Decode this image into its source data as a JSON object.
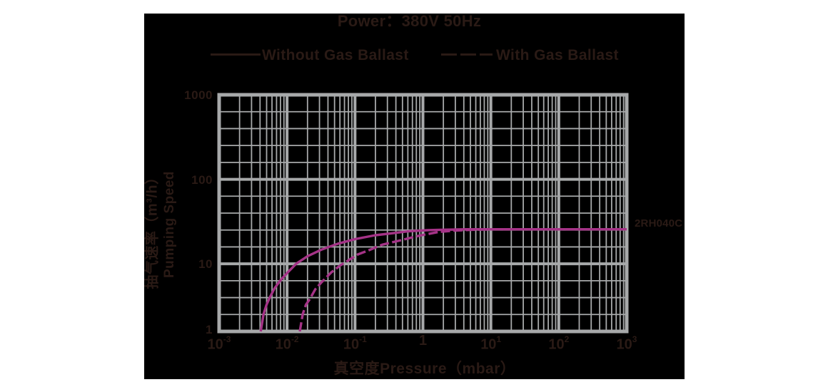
{
  "title": "Power：380V 50Hz",
  "legend": {
    "without": "Without Gas Ballast",
    "with": "With Gas Ballast"
  },
  "series_tag": "2RH040C",
  "colors": {
    "curve": "#a53387",
    "grid": "#a7a9aa",
    "text": "#2a1a15",
    "panel_bg": "#000000",
    "page_bg": "#ffffff"
  },
  "y_axis": {
    "label_cn": "抽气速率（m³/h）",
    "label_en": "Pumping Speed",
    "ticks": [
      "1000",
      "100",
      "10",
      "1"
    ]
  },
  "x_axis": {
    "label": "真空度Pressure（mbar）",
    "ticks": [
      {
        "base": "10",
        "exp": "-3"
      },
      {
        "base": "10",
        "exp": "-2"
      },
      {
        "base": "10",
        "exp": "-1"
      },
      {
        "base": "1",
        "exp": ""
      },
      {
        "base": "10",
        "exp": "1"
      },
      {
        "base": "10",
        "exp": "2"
      },
      {
        "base": "10",
        "exp": "3"
      }
    ]
  },
  "chart_data": {
    "type": "line",
    "title": "Power：380V 50Hz",
    "xlabel": "真空度Pressure（mbar）",
    "ylabel": "抽气速率（m³/h）Pumping Speed",
    "x_scale": "log",
    "y_scale": "log",
    "xlim": [
      0.001,
      1000
    ],
    "ylim": [
      1,
      1000
    ],
    "series": [
      {
        "name": "Without Gas Ballast",
        "style": "solid",
        "points": [
          [
            0.0041,
            1
          ],
          [
            0.0045,
            1.8
          ],
          [
            0.005,
            2.5
          ],
          [
            0.0055,
            3.1
          ],
          [
            0.0065,
            4.3
          ],
          [
            0.008,
            5.7
          ],
          [
            0.01,
            7.3
          ],
          [
            0.0136,
            10
          ],
          [
            0.02,
            12.3
          ],
          [
            0.032,
            14.7
          ],
          [
            0.055,
            17.2
          ],
          [
            0.1,
            19.6
          ],
          [
            0.2,
            21.8
          ],
          [
            0.35,
            23
          ],
          [
            0.6,
            24.2
          ],
          [
            1.15,
            25
          ],
          [
            2,
            25.3
          ],
          [
            4.3,
            25.6
          ],
          [
            10,
            25.6
          ],
          [
            100,
            25.6
          ],
          [
            1000,
            25.6
          ]
        ]
      },
      {
        "name": "With Gas Ballast",
        "style": "dashed",
        "points": [
          [
            0.0154,
            1
          ],
          [
            0.017,
            1.8
          ],
          [
            0.019,
            2.5
          ],
          [
            0.0216,
            3
          ],
          [
            0.026,
            4.2
          ],
          [
            0.032,
            5.3
          ],
          [
            0.045,
            7.5
          ],
          [
            0.061,
            9.5
          ],
          [
            0.08,
            11
          ],
          [
            0.11,
            12.9
          ],
          [
            0.157,
            14.4
          ],
          [
            0.25,
            16.8
          ],
          [
            0.51,
            19.3
          ],
          [
            0.9,
            21.6
          ],
          [
            1.7,
            23.8
          ],
          [
            3,
            24.8
          ],
          [
            5.8,
            25.3
          ],
          [
            12,
            25.6
          ],
          [
            20,
            25.6
          ],
          [
            100,
            25.6
          ],
          [
            1000,
            25.6
          ]
        ]
      }
    ]
  }
}
